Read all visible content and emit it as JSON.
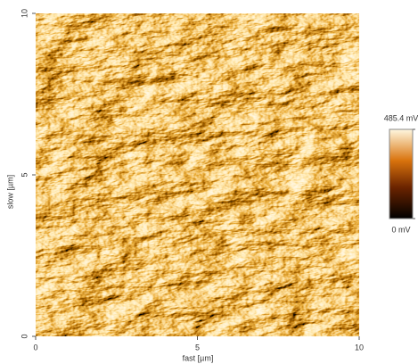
{
  "chart_data": {
    "type": "image",
    "xlabel": "fast [µm]",
    "ylabel": "slow [µm]",
    "xlim": [
      0,
      10
    ],
    "ylim": [
      0,
      10
    ],
    "xticks": [
      0,
      5,
      10
    ],
    "yticks": [
      0,
      5,
      10
    ],
    "zlim": [
      0,
      485.4
    ],
    "zticks": [
      {
        "value": 0,
        "label": "0 mV"
      },
      {
        "value": 485.4,
        "label": "485.4 mV"
      }
    ]
  }
}
